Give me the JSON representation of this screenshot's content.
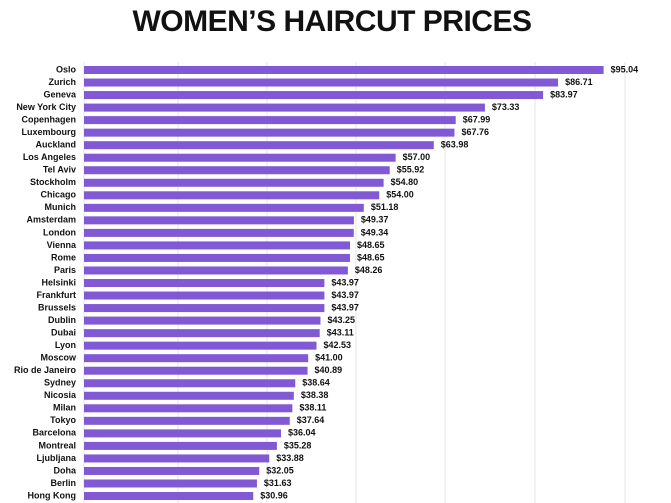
{
  "chart_data": {
    "type": "bar",
    "orientation": "horizontal",
    "title": "WOMEN’S HAIRCUT PRICES",
    "categories": [
      "Oslo",
      "Zurich",
      "Geneva",
      "New York City",
      "Copenhagen",
      "Luxembourg",
      "Auckland",
      "Los Angeles",
      "Tel Aviv",
      "Stockholm",
      "Chicago",
      "Munich",
      "Amsterdam",
      "London",
      "Vienna",
      "Rome",
      "Paris",
      "Helsinki",
      "Frankfurt",
      "Brussels",
      "Dublin",
      "Dubai",
      "Lyon",
      "Moscow",
      "Rio de Janeiro",
      "Sydney",
      "Nicosia",
      "Milan",
      "Tokyo",
      "Barcelona",
      "Montreal",
      "Ljubljana",
      "Doha",
      "Berlin",
      "Hong Kong"
    ],
    "values": [
      95.04,
      86.71,
      83.97,
      73.33,
      67.99,
      67.76,
      63.98,
      57.0,
      55.92,
      54.8,
      54.0,
      51.18,
      49.37,
      49.34,
      48.65,
      48.65,
      48.26,
      43.97,
      43.97,
      43.97,
      43.25,
      43.11,
      42.53,
      41.0,
      40.89,
      38.64,
      38.38,
      38.11,
      37.64,
      36.04,
      35.28,
      33.88,
      32.05,
      31.63,
      30.96
    ],
    "value_labels": [
      "$95.04",
      "$86.71",
      "$83.97",
      "$73.33",
      "$67.99",
      "$67.76",
      "$63.98",
      "$57.00",
      "$55.92",
      "$54.80",
      "$54.00",
      "$51.18",
      "$49.37",
      "$49.34",
      "$48.65",
      "$48.65",
      "$48.26",
      "$43.97",
      "$43.97",
      "$43.97",
      "$43.25",
      "$43.11",
      "$42.53",
      "$41.00",
      "$40.89",
      "$38.64",
      "$38.38",
      "$38.11",
      "$37.64",
      "$36.04",
      "$35.28",
      "$33.88",
      "$32.05",
      "$31.63",
      "$30.96"
    ],
    "color": "#8159d4",
    "xlim": [
      0,
      107
    ]
  }
}
